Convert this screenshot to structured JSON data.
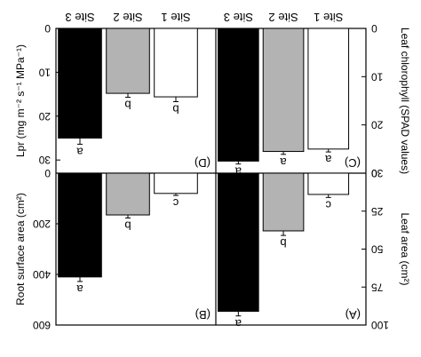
{
  "chart_data": [
    {
      "type": "bar",
      "panel_label": "(A)",
      "categories": [
        "Site 1",
        "Site 2",
        "Site 3"
      ],
      "values": [
        14,
        38,
        91
      ],
      "errors": [
        2,
        3,
        3
      ],
      "letters": [
        "c",
        "b",
        "a"
      ],
      "colors": [
        "#ffffff",
        "#b3b3b3",
        "#000000"
      ],
      "ylabel": "Leaf area (cm²)",
      "ylim": [
        0,
        100
      ],
      "ticks": [
        "0",
        "25",
        "50",
        "75",
        "100"
      ]
    },
    {
      "type": "bar",
      "panel_label": "(B)",
      "categories": [
        "Site 1",
        "Site 2",
        "Site 3"
      ],
      "values": [
        80,
        165,
        410
      ],
      "errors": [
        8,
        12,
        18
      ],
      "letters": [
        "c",
        "b",
        "a"
      ],
      "colors": [
        "#ffffff",
        "#b3b3b3",
        "#000000"
      ],
      "ylabel": "Root surface area (cm²)",
      "ylim": [
        0,
        600
      ],
      "ticks": [
        "0",
        "200",
        "400",
        "600"
      ]
    },
    {
      "type": "bar",
      "panel_label": "(C)",
      "categories": [
        "Site 1",
        "Site 2",
        "Site 3"
      ],
      "values": [
        25,
        25.5,
        27.5
      ],
      "errors": [
        0.6,
        0.6,
        0.6
      ],
      "letters": [
        "a",
        "a",
        "a"
      ],
      "colors": [
        "#ffffff",
        "#b3b3b3",
        "#000000"
      ],
      "ylabel": "Leaf chlorophyll (SPAD values)",
      "ylim": [
        0,
        30
      ],
      "ticks": [
        "0",
        "10",
        "20",
        "30"
      ]
    },
    {
      "type": "bar",
      "panel_label": "(D)",
      "categories": [
        "Site 1",
        "Site 2",
        "Site 3"
      ],
      "values": [
        15.6,
        14.8,
        25
      ],
      "errors": [
        1.1,
        0.9,
        1.4
      ],
      "letters": [
        "b",
        "b",
        "a"
      ],
      "colors": [
        "#ffffff",
        "#b3b3b3",
        "#000000"
      ],
      "ylabel": "Lpr (mg m⁻² s⁻¹ MPa⁻¹)",
      "ylim": [
        0,
        33
      ],
      "ticks": [
        "0",
        "10",
        "20",
        "30"
      ]
    }
  ]
}
